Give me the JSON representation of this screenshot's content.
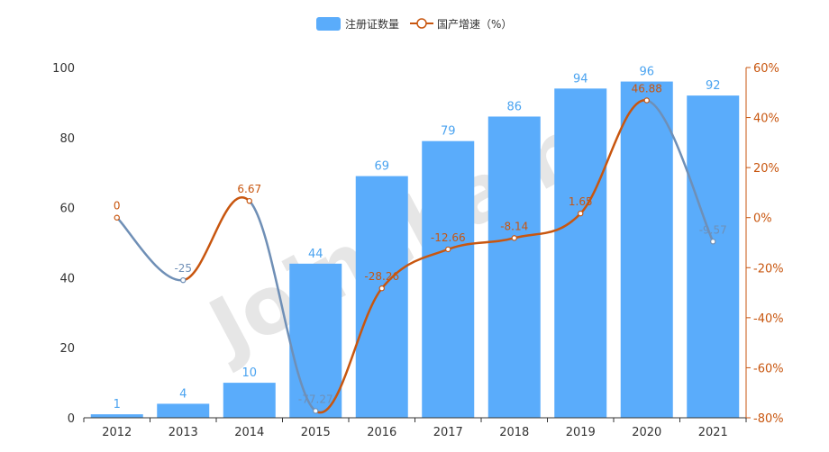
{
  "legend": {
    "bar_label": "注册证数量",
    "line_label": "国产增速（%）"
  },
  "watermark": "Joinchain",
  "colors": {
    "bar": "#5aacfb",
    "bar_label": "#4aa3f0",
    "line_up": "#c8560f",
    "line_down": "#6f8fb6",
    "right_axis": "#c8560f",
    "axis": "#333333"
  },
  "chart_data": {
    "type": "bar",
    "categories": [
      "2012",
      "2013",
      "2014",
      "2015",
      "2016",
      "2017",
      "2018",
      "2019",
      "2020",
      "2021"
    ],
    "series": [
      {
        "name": "注册证数量",
        "type": "bar",
        "axis": "left",
        "values": [
          1,
          4,
          10,
          44,
          69,
          79,
          86,
          94,
          96,
          92
        ],
        "labels": [
          "1",
          "4",
          "10",
          "44",
          "69",
          "79",
          "86",
          "94",
          "96",
          "92"
        ]
      },
      {
        "name": "国产增速（%）",
        "type": "line",
        "axis": "right",
        "values": [
          0,
          -25,
          6.67,
          -77.27,
          -28.26,
          -12.66,
          -8.14,
          1.65,
          46.88,
          -9.57
        ],
        "labels": [
          "0",
          "-25",
          "6.67",
          "-77.27",
          "-28.26",
          "-12.66",
          "-8.14",
          "1.65",
          "46.88",
          "-9.57"
        ]
      }
    ],
    "y_left": {
      "min": 0,
      "max": 100,
      "ticks": [
        "0",
        "20",
        "40",
        "60",
        "80",
        "100"
      ]
    },
    "y_right": {
      "min": -80,
      "max": 60,
      "ticks": [
        "-80%",
        "-60%",
        "-40%",
        "-20%",
        "0%",
        "20%",
        "40%",
        "60%"
      ]
    },
    "grid": false,
    "legend_position": "top-center"
  }
}
